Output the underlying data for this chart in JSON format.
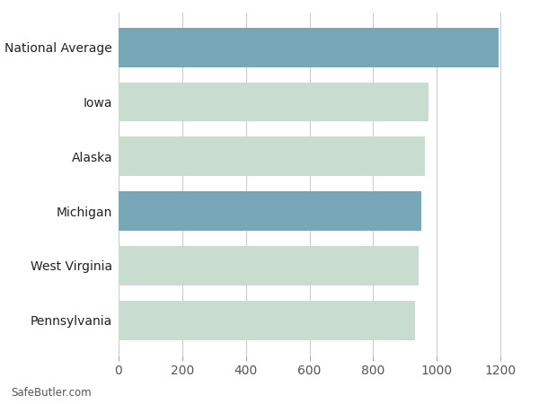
{
  "categories": [
    "Pennsylvania",
    "West Virginia",
    "Michigan",
    "Alaska",
    "Iowa",
    "National Average"
  ],
  "values": [
    930,
    944,
    952,
    962,
    973,
    1195
  ],
  "bar_colors": [
    "#c8ddd0",
    "#c8ddd0",
    "#78a8b8",
    "#c8ddd0",
    "#c8ddd0",
    "#78a8b8"
  ],
  "xlim": [
    0,
    1270
  ],
  "xticks": [
    0,
    200,
    400,
    600,
    800,
    1000,
    1200
  ],
  "footer_text": "SafeButler.com",
  "background_color": "#ffffff",
  "bar_height": 0.72,
  "grid_color": "#cccccc",
  "label_color": "#222222",
  "tick_label_color": "#555555",
  "label_fontsize": 10,
  "tick_fontsize": 10
}
